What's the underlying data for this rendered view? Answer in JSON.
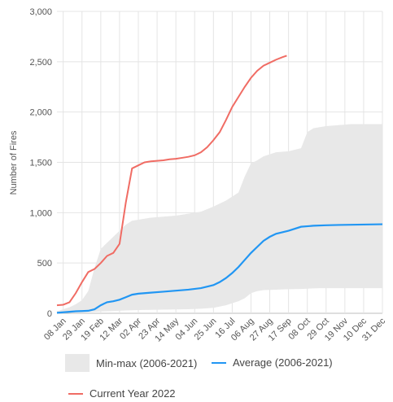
{
  "chart_data": {
    "type": "line",
    "ylabel": "Number of Fires",
    "xlabel": "",
    "ylim": [
      0,
      3000
    ],
    "yticks": [
      0,
      500,
      1000,
      1500,
      2000,
      2500,
      3000
    ],
    "ytick_labels": [
      "0",
      "500",
      "1,000",
      "1,500",
      "2,000",
      "2,500",
      "3,000"
    ],
    "xlim_day": [
      1,
      365
    ],
    "xtick_days": [
      8,
      29,
      50,
      71,
      92,
      113,
      134,
      155,
      176,
      197,
      218,
      239,
      260,
      281,
      302,
      323,
      344,
      365
    ],
    "xtick_labels": [
      "08 Jan",
      "29 Jan",
      "19 Feb",
      "12 Mar",
      "02 Apr",
      "23 Apr",
      "14 May",
      "04 Jun",
      "25 Jun",
      "16 Jul",
      "06 Aug",
      "27 Aug",
      "17 Sep",
      "08 Oct",
      "29 Oct",
      "19 Nov",
      "10 Dec",
      "31 Dec"
    ],
    "grid": true,
    "legend_position": "bottom",
    "series": [
      {
        "name": "Min-max (2006-2021)",
        "kind": "band",
        "color": "#e8e8e8",
        "x": [
          1,
          8,
          15,
          22,
          29,
          36,
          43,
          50,
          57,
          64,
          71,
          78,
          85,
          92,
          106,
          120,
          134,
          148,
          162,
          176,
          190,
          204,
          211,
          218,
          225,
          232,
          246,
          260,
          274,
          281,
          288,
          295,
          302,
          316,
          330,
          344,
          365
        ],
        "low": [
          0,
          2,
          5,
          8,
          10,
          12,
          15,
          18,
          20,
          22,
          25,
          28,
          30,
          32,
          34,
          36,
          38,
          40,
          45,
          55,
          80,
          120,
          150,
          200,
          220,
          230,
          235,
          240,
          242,
          245,
          248,
          250,
          250,
          250,
          250,
          250,
          250
        ],
        "high": [
          20,
          40,
          60,
          90,
          130,
          220,
          450,
          640,
          700,
          760,
          820,
          880,
          920,
          930,
          950,
          960,
          970,
          990,
          1010,
          1060,
          1120,
          1200,
          1360,
          1490,
          1520,
          1560,
          1600,
          1610,
          1640,
          1800,
          1840,
          1850,
          1860,
          1870,
          1880,
          1880,
          1880
        ]
      },
      {
        "name": "Average (2006-2021)",
        "kind": "line",
        "color": "#2196f3",
        "x": [
          1,
          8,
          15,
          22,
          29,
          36,
          43,
          50,
          57,
          64,
          71,
          78,
          85,
          92,
          106,
          120,
          134,
          148,
          162,
          176,
          183,
          190,
          197,
          204,
          211,
          218,
          225,
          232,
          239,
          246,
          253,
          260,
          274,
          288,
          302,
          316,
          330,
          344,
          365
        ],
        "y": [
          5,
          10,
          15,
          20,
          22,
          25,
          40,
          80,
          110,
          120,
          135,
          160,
          185,
          195,
          205,
          215,
          225,
          235,
          250,
          280,
          310,
          350,
          400,
          460,
          530,
          600,
          660,
          720,
          760,
          790,
          805,
          820,
          860,
          870,
          875,
          878,
          880,
          882,
          885
        ]
      },
      {
        "name": "Current Year 2022",
        "kind": "line",
        "color": "#f06c64",
        "x": [
          1,
          8,
          15,
          22,
          29,
          36,
          43,
          50,
          57,
          64,
          71,
          78,
          85,
          92,
          99,
          106,
          113,
          120,
          127,
          134,
          141,
          148,
          155,
          162,
          169,
          176,
          183,
          190,
          197,
          204,
          211,
          218,
          225,
          232,
          239,
          246,
          253,
          258
        ],
        "y": [
          80,
          85,
          110,
          200,
          310,
          410,
          440,
          500,
          570,
          600,
          690,
          1100,
          1440,
          1470,
          1500,
          1510,
          1515,
          1520,
          1530,
          1535,
          1545,
          1555,
          1570,
          1600,
          1650,
          1720,
          1800,
          1920,
          2050,
          2150,
          2250,
          2340,
          2410,
          2460,
          2490,
          2520,
          2545,
          2560
        ]
      }
    ]
  }
}
